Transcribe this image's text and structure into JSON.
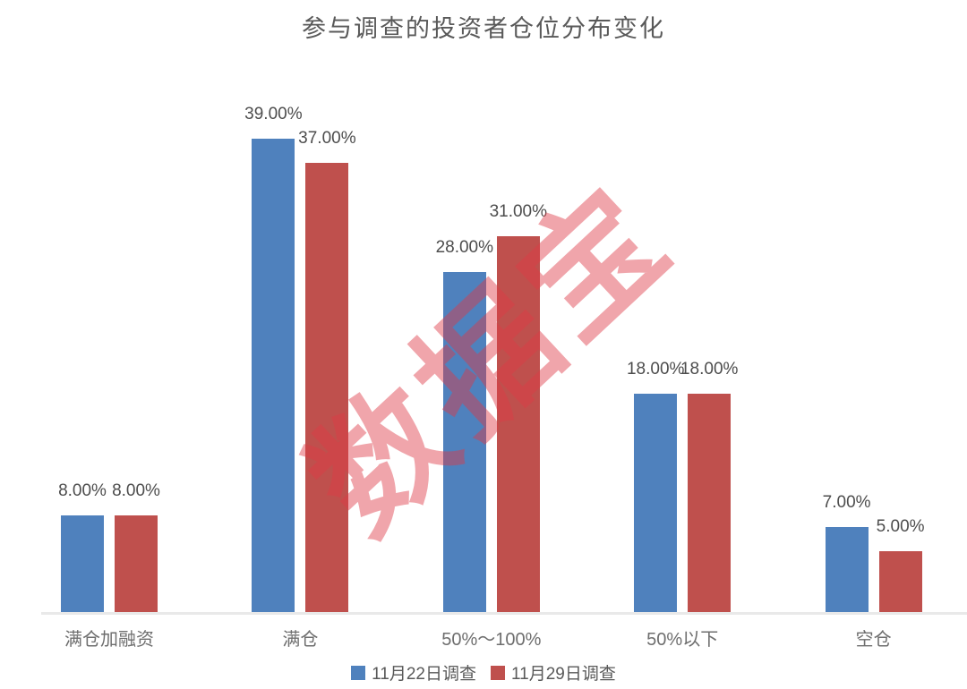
{
  "chart_data": {
    "type": "bar",
    "title": "参与调查的投资者仓位分布变化",
    "categories": [
      "满仓加融资",
      "满仓",
      "50%～100%",
      "50%以下",
      "空仓"
    ],
    "series": [
      {
        "name": "11月22日调查",
        "color": "#4F81BD",
        "values": [
          8,
          39,
          28,
          18,
          7
        ],
        "labels": [
          "8.00%",
          "39.00%",
          "28.00%",
          "18.00%",
          "7.00%"
        ]
      },
      {
        "name": "11月29日调查",
        "color": "#BF504D",
        "values": [
          8,
          37,
          31,
          18,
          5
        ],
        "labels": [
          "8.00%",
          "37.00%",
          "31.00%",
          "18.00%",
          "5.00%"
        ]
      }
    ],
    "unit": "%",
    "ylim": [
      0,
      40
    ],
    "grid": false,
    "legend_position": "bottom",
    "watermark": {
      "text": "数据宝",
      "color": "#DE3A46"
    }
  }
}
